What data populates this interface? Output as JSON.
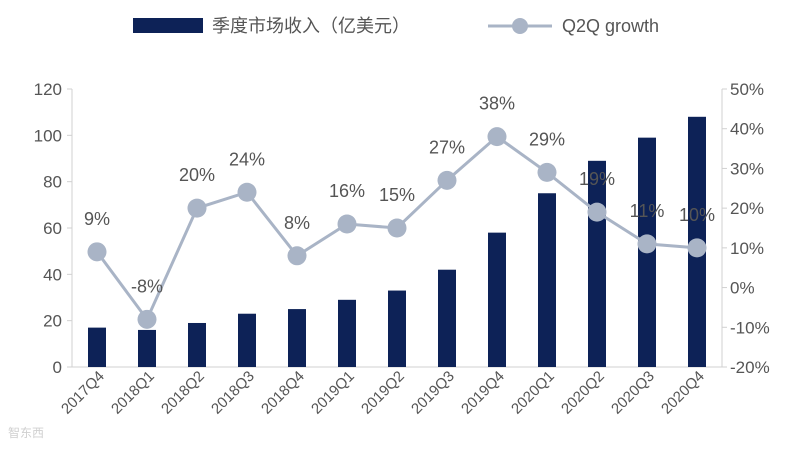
{
  "chart_data": {
    "type": "bar+line",
    "categories": [
      "2017Q4",
      "2018Q1",
      "2018Q2",
      "2018Q3",
      "2018Q4",
      "2019Q1",
      "2019Q2",
      "2019Q3",
      "2019Q4",
      "2020Q1",
      "2020Q2",
      "2020Q3",
      "2020Q4"
    ],
    "series": [
      {
        "name": "季度市场收入（亿美元）",
        "type": "bar",
        "axis": "left",
        "color": "#0d2257",
        "values": [
          17,
          16,
          19,
          23,
          25,
          29,
          33,
          42,
          58,
          75,
          89,
          99,
          108
        ]
      },
      {
        "name": "Q2Q growth",
        "type": "line",
        "axis": "right",
        "color": "#a9b4c6",
        "values": [
          9,
          -8,
          20,
          24,
          8,
          16,
          15,
          27,
          38,
          29,
          19,
          11,
          10
        ],
        "labels": [
          "9%",
          "-8%",
          "20%",
          "24%",
          "8%",
          "16%",
          "15%",
          "27%",
          "38%",
          "29%",
          "19%",
          "11%",
          "10%"
        ]
      }
    ],
    "y_left": {
      "min": 0,
      "max": 120,
      "ticks": [
        "0",
        "20",
        "40",
        "60",
        "80",
        "100",
        "120"
      ]
    },
    "y_right": {
      "min": -20,
      "max": 50,
      "ticks": [
        "-20%",
        "-10%",
        "0%",
        "10%",
        "20%",
        "30%",
        "40%",
        "50%"
      ]
    },
    "grid": false,
    "legend_position": "top"
  },
  "watermark": "智东西"
}
